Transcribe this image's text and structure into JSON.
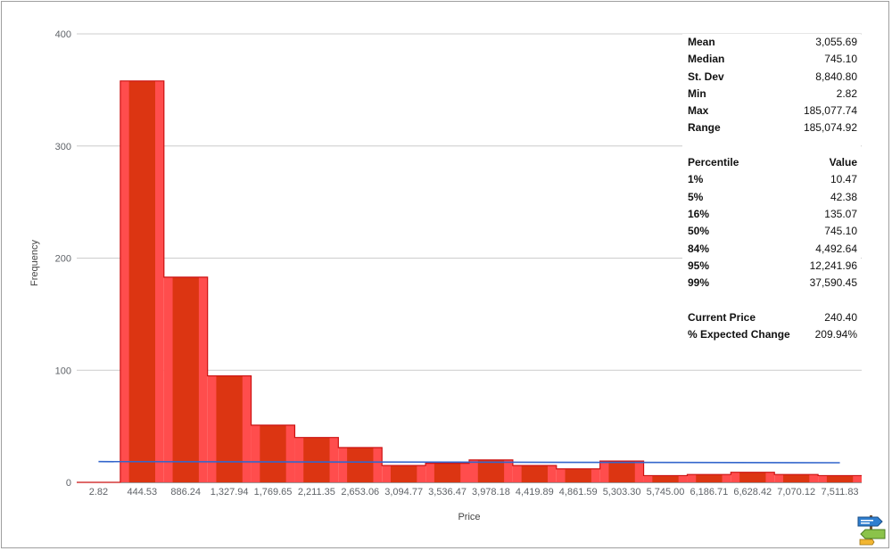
{
  "chart_data": {
    "type": "bar",
    "xlabel": "Price",
    "ylabel": "Frequency",
    "ylim": [
      0,
      400
    ],
    "yticks": [
      0,
      100,
      200,
      300,
      400
    ],
    "categories": [
      "2.82",
      "444.53",
      "886.24",
      "1,327.94",
      "1,769.65",
      "2,211.35",
      "2,653.06",
      "3,094.77",
      "3,536.47",
      "3,978.18",
      "4,419.89",
      "4,861.59",
      "5,303.30",
      "5,745.00",
      "6,186.71",
      "6,628.42",
      "7,070.12",
      "7,511.83"
    ],
    "values": [
      0,
      358,
      183,
      95,
      51,
      40,
      31,
      15,
      17,
      20,
      15,
      12,
      19,
      6,
      7,
      9,
      7,
      6
    ],
    "fit_line": {
      "start": 18.5,
      "end": 17.5
    },
    "colors": {
      "bar_outer": "#ff4d4d",
      "bar_inner": "#dc3512",
      "bar_edge": "#cc1111",
      "fit_line": "#3366cc",
      "grid": "#cccccc"
    }
  },
  "stats": {
    "summary": [
      {
        "label": "Mean",
        "value": "3,055.69"
      },
      {
        "label": "Median",
        "value": "745.10"
      },
      {
        "label": "St. Dev",
        "value": "8,840.80"
      },
      {
        "label": "Min",
        "value": "2.82"
      },
      {
        "label": "Max",
        "value": "185,077.74"
      },
      {
        "label": "Range",
        "value": "185,074.92"
      }
    ],
    "percentile_header": {
      "label": "Percentile",
      "value": "Value"
    },
    "percentiles": [
      {
        "label": "1%",
        "value": "10.47"
      },
      {
        "label": "5%",
        "value": "42.38"
      },
      {
        "label": "16%",
        "value": "135.07"
      },
      {
        "label": "50%",
        "value": "745.10"
      },
      {
        "label": "84%",
        "value": "4,492.64"
      },
      {
        "label": "95%",
        "value": "12,241.96"
      },
      {
        "label": "99%",
        "value": "37,590.45"
      }
    ],
    "extra": [
      {
        "label": "Current Price",
        "value": "240.40"
      },
      {
        "label": "% Expected Change",
        "value": "209.94%"
      }
    ]
  }
}
